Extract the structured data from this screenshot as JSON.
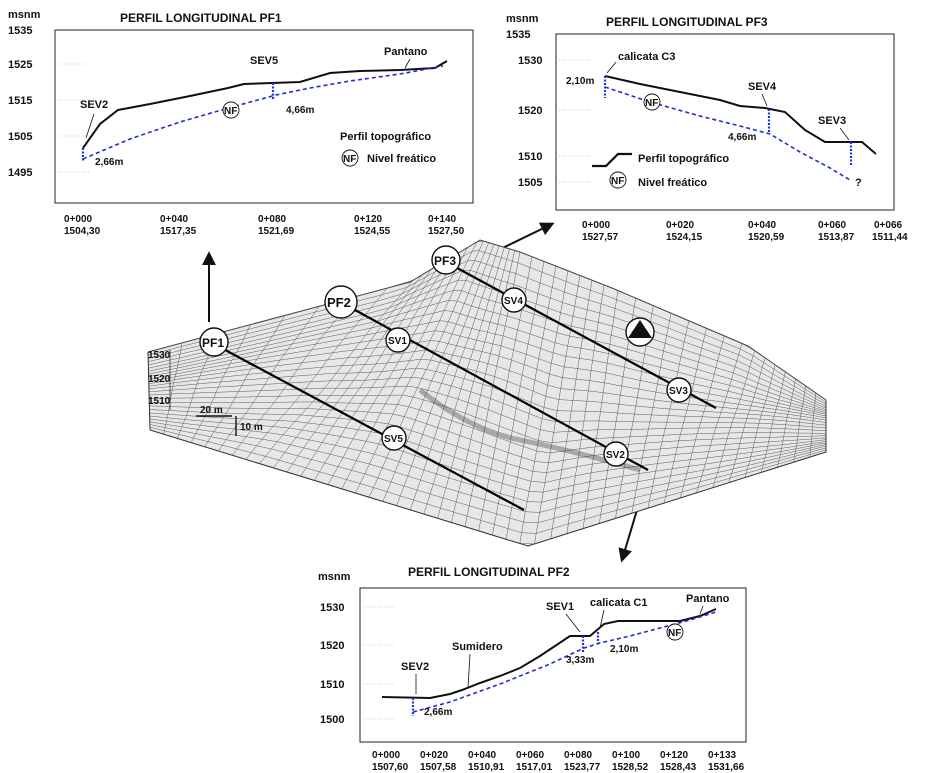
{
  "pf1": {
    "title": "PERFIL LONGITUDINAL PF1",
    "unit": "msnm",
    "y_ticks": [
      "1535",
      "1525",
      "1515",
      "1505",
      "1495"
    ],
    "x_ticks": [
      {
        "dist": "0+000",
        "elev": "1504,30"
      },
      {
        "dist": "0+040",
        "elev": "1517,35"
      },
      {
        "dist": "0+080",
        "elev": "1521,69"
      },
      {
        "dist": "0+120",
        "elev": "1524,55"
      },
      {
        "dist": "0+140",
        "elev": "1527,50"
      }
    ],
    "labels": {
      "sev2": "SEV2",
      "sev5": "SEV5",
      "pantano": "Pantano",
      "nf": "NF",
      "d1": "2,66m",
      "d2": "4,66m"
    },
    "legend": {
      "topo": "Perfil topográfico",
      "nf_symbol": "NF",
      "nf": "Nivel freático"
    }
  },
  "pf3": {
    "title": "PERFIL LONGITUDINAL PF3",
    "unit": "msnm",
    "y_ticks": [
      "1535",
      "1530",
      "1520",
      "1510",
      "1505"
    ],
    "x_ticks": [
      {
        "dist": "0+000",
        "elev": "1527,57"
      },
      {
        "dist": "0+020",
        "elev": "1524,15"
      },
      {
        "dist": "0+040",
        "elev": "1520,59"
      },
      {
        "dist": "0+060",
        "elev": "1513,87"
      },
      {
        "dist": "0+066",
        "elev": "1511,44"
      }
    ],
    "labels": {
      "calicata": "calicata C3",
      "sev4": "SEV4",
      "sev3": "SEV3",
      "nf": "NF",
      "d1": "2,10m",
      "d2": "4,66m",
      "q": "?"
    },
    "legend": {
      "topo": "Perfil topográfico",
      "nf_symbol": "NF",
      "nf": "Nivel freático"
    }
  },
  "pf2": {
    "title": "PERFIL LONGITUDINAL PF2",
    "unit": "msnm",
    "y_ticks": [
      "1530",
      "1520",
      "1510",
      "1500"
    ],
    "x_ticks": [
      {
        "dist": "0+000",
        "elev": "1507,60"
      },
      {
        "dist": "0+020",
        "elev": "1507,58"
      },
      {
        "dist": "0+040",
        "elev": "1510,91"
      },
      {
        "dist": "0+060",
        "elev": "1517,01"
      },
      {
        "dist": "0+080",
        "elev": "1523,77"
      },
      {
        "dist": "0+100",
        "elev": "1528,52"
      },
      {
        "dist": "0+120",
        "elev": "1528,43"
      },
      {
        "dist": "0+133",
        "elev": "1531,66"
      }
    ],
    "labels": {
      "sev2": "SEV2",
      "sumidero": "Sumidero",
      "sev1": "SEV1",
      "calicata": "calicata C1",
      "pantano": "Pantano",
      "nf": "NF",
      "d1": "2,66m",
      "d2": "3,33m",
      "d3": "2,10m"
    }
  },
  "model": {
    "profiles": {
      "pf1": "PF1",
      "pf2": "PF2",
      "pf3": "PF3"
    },
    "points": {
      "sv1": "SV1",
      "sv2": "SV2",
      "sv3": "SV3",
      "sv4": "SV4",
      "sv5": "SV5"
    },
    "z_ticks": [
      "1530",
      "1520",
      "1510"
    ],
    "scale_h": "20 m",
    "scale_v": "10 m"
  }
}
